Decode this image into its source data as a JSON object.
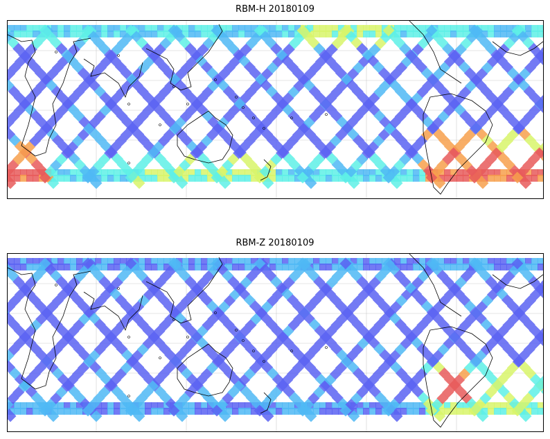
{
  "panels": [
    {
      "title": "RBM-H 20180109",
      "intensity": "high"
    },
    {
      "title": "RBM-Z 20180109",
      "intensity": "low"
    }
  ],
  "colors": {
    "track_low": "#5b63f2",
    "track_mid": "#4fb8f5",
    "track_cyan": "#5ef0e6",
    "track_yellow": "#d8f56a",
    "track_orange": "#f7a04c",
    "track_red": "#e85a5a",
    "coast": "#000000",
    "grid": "#cccccc"
  }
}
